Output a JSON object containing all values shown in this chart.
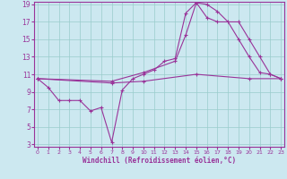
{
  "xlabel": "Windchill (Refroidissement éolien,°C)",
  "bg_color": "#cce8f0",
  "line_color": "#993399",
  "grid_color": "#99cccc",
  "xmin": 0,
  "xmax": 23,
  "ymin": 3,
  "ymax": 19,
  "yticks": [
    3,
    5,
    7,
    9,
    11,
    13,
    15,
    17,
    19
  ],
  "xticks": [
    0,
    1,
    2,
    3,
    4,
    5,
    6,
    7,
    8,
    9,
    10,
    11,
    12,
    13,
    14,
    15,
    16,
    17,
    18,
    19,
    20,
    21,
    22,
    23
  ],
  "line1_x": [
    0,
    1,
    2,
    3,
    4,
    5,
    6,
    7,
    8,
    9,
    10,
    11,
    12,
    13,
    14,
    15,
    16,
    17,
    18,
    19,
    20,
    21,
    22,
    23
  ],
  "line1_y": [
    10.5,
    9.5,
    8.0,
    8.0,
    8.0,
    6.8,
    7.2,
    3.2,
    9.2,
    10.5,
    11.0,
    11.5,
    12.5,
    12.8,
    18.0,
    19.2,
    19.0,
    18.2,
    17.0,
    15.0,
    13.0,
    11.2,
    11.0,
    10.5
  ],
  "line2_x": [
    0,
    7,
    10,
    13,
    14,
    15,
    16,
    17,
    19,
    20,
    21,
    22,
    23
  ],
  "line2_y": [
    10.5,
    10.2,
    11.2,
    12.5,
    15.5,
    19.2,
    17.5,
    17.0,
    17.0,
    15.0,
    13.0,
    11.0,
    10.5
  ],
  "line3_x": [
    0,
    7,
    10,
    15,
    20,
    23
  ],
  "line3_y": [
    10.5,
    10.0,
    10.2,
    11.0,
    10.5,
    10.5
  ]
}
